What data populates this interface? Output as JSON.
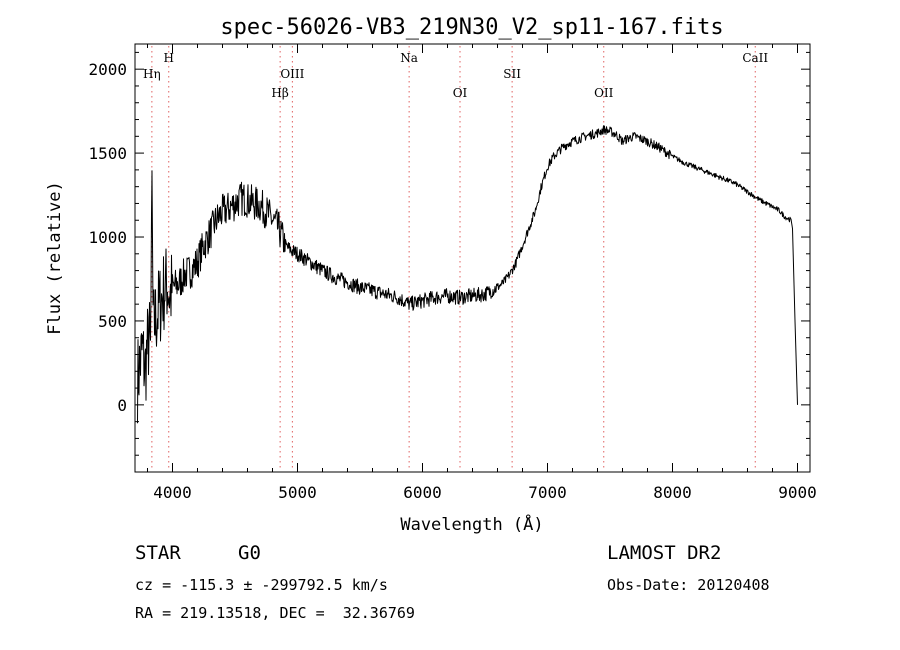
{
  "chart_data": {
    "type": "line",
    "title": "spec-56026-VB3_219N30_V2_sp11-167.fits",
    "xlabel": "Wavelength (Å)",
    "ylabel": "Flux (relative)",
    "xlim": [
      3700,
      9100
    ],
    "ylim": [
      -400,
      2150
    ],
    "x_ticks": [
      4000,
      5000,
      6000,
      7000,
      8000,
      9000
    ],
    "y_ticks": [
      0,
      500,
      1000,
      1500,
      2000
    ],
    "grid": false,
    "line_color": "#000000",
    "marker_color": "#e06060",
    "lines": [
      {
        "label": "Hη",
        "wavelength": 3835,
        "row": 2
      },
      {
        "label": "H",
        "wavelength": 3970,
        "row": 1
      },
      {
        "label": "Hβ",
        "wavelength": 4861,
        "row": 3
      },
      {
        "label": "OIII",
        "wavelength": 4959,
        "row": 2
      },
      {
        "label": "Na",
        "wavelength": 5893,
        "row": 1
      },
      {
        "label": "OI",
        "wavelength": 6300,
        "row": 3
      },
      {
        "label": "SII",
        "wavelength": 6717,
        "row": 2
      },
      {
        "label": "OII",
        "wavelength": 7450,
        "row": 3
      },
      {
        "label": "CaII",
        "wavelength": 8662,
        "row": 1
      }
    ],
    "series": [
      {
        "x": [
          3720,
          3740,
          3760,
          3780,
          3800,
          3815,
          3825,
          3835,
          3845,
          3860,
          3880,
          3900,
          3920,
          3940,
          3960,
          3980,
          4000,
          4050,
          4100,
          4150,
          4200,
          4250,
          4300,
          4350,
          4400,
          4450,
          4500,
          4550,
          4600,
          4650,
          4700,
          4750,
          4800,
          4850,
          4900,
          4950,
          5000,
          5100,
          5200,
          5300,
          5400,
          5500,
          5600,
          5700,
          5800,
          5900,
          6000,
          6100,
          6200,
          6300,
          6400,
          6500,
          6550,
          6600,
          6650,
          6700,
          6750,
          6800,
          6850,
          6900,
          6950,
          7000,
          7050,
          7100,
          7150,
          7200,
          7300,
          7400,
          7450,
          7500,
          7550,
          7600,
          7650,
          7700,
          7800,
          7900,
          8000,
          8100,
          8200,
          8300,
          8400,
          8500,
          8600,
          8700,
          8750,
          8800,
          8850,
          8900,
          8950,
          8960,
          8980,
          9000
        ],
        "y": [
          150,
          250,
          320,
          200,
          350,
          400,
          300,
          1500,
          450,
          500,
          550,
          600,
          650,
          700,
          720,
          650,
          700,
          720,
          780,
          800,
          850,
          950,
          1020,
          1100,
          1150,
          1170,
          1200,
          1230,
          1220,
          1200,
          1190,
          1150,
          1100,
          1050,
          950,
          920,
          900,
          850,
          800,
          760,
          730,
          700,
          680,
          660,
          640,
          600,
          620,
          640,
          650,
          640,
          650,
          660,
          680,
          700,
          730,
          780,
          850,
          950,
          1050,
          1150,
          1300,
          1420,
          1480,
          1520,
          1550,
          1570,
          1600,
          1620,
          1640,
          1630,
          1610,
          1570,
          1590,
          1600,
          1570,
          1530,
          1480,
          1440,
          1410,
          1380,
          1350,
          1320,
          1270,
          1220,
          1200,
          1180,
          1160,
          1120,
          1100,
          1050,
          500,
          0
        ]
      }
    ]
  },
  "footer": {
    "object_class": "STAR",
    "subclass": "G0",
    "survey": "LAMOST DR2",
    "velocity": "cz = -115.3 ± -299792.5 km/s",
    "obs_date": "Obs-Date: 20120408",
    "coordinates": "RA = 219.13518, DEC =  32.36769"
  }
}
